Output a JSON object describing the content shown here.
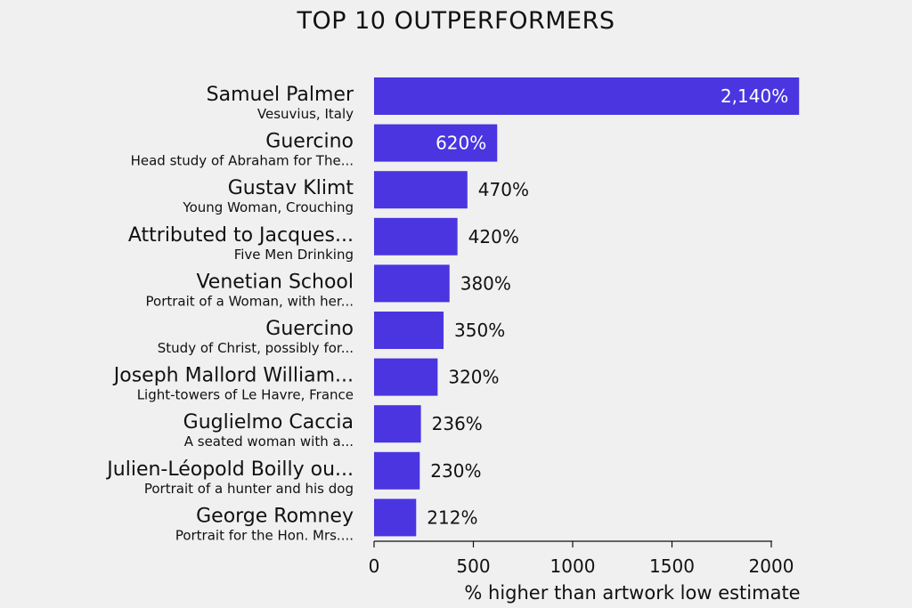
{
  "chart_data": {
    "type": "bar",
    "orientation": "horizontal",
    "title": "TOP 10 OUTPERFORMERS",
    "xlabel": "% higher than artwork low estimate",
    "xlim": [
      0,
      2000
    ],
    "xticks": [
      "0",
      "500",
      "1000",
      "1500",
      "2000"
    ],
    "grid": false,
    "bar_color": "#4a35e0",
    "categories": [
      {
        "artist": "Samuel Palmer",
        "work": "Vesuvius, Italy",
        "value": 2140,
        "label": "2,140%"
      },
      {
        "artist": "Guercino",
        "work": "Head study of Abraham for The...",
        "value": 620,
        "label": "620%"
      },
      {
        "artist": "Gustav Klimt",
        "work": "Young Woman, Crouching",
        "value": 470,
        "label": "470%"
      },
      {
        "artist": "Attributed to Jacques...",
        "work": "Five Men Drinking",
        "value": 420,
        "label": "420%"
      },
      {
        "artist": "Venetian School",
        "work": "Portrait of a Woman, with her...",
        "value": 380,
        "label": "380%"
      },
      {
        "artist": "Guercino",
        "work": "Study of Christ, possibly for...",
        "value": 350,
        "label": "350%"
      },
      {
        "artist": "Joseph Mallord William...",
        "work": "Light-towers of Le Havre, France",
        "value": 320,
        "label": "320%"
      },
      {
        "artist": "Guglielmo Caccia",
        "work": "A seated woman with a...",
        "value": 236,
        "label": "236%"
      },
      {
        "artist": "Julien-Léopold Boilly ou...",
        "work": "Portrait of a hunter and his dog",
        "value": 230,
        "label": "230%"
      },
      {
        "artist": "George Romney",
        "work": "Portrait for the Hon. Mrs....",
        "value": 212,
        "label": "212%"
      }
    ]
  }
}
